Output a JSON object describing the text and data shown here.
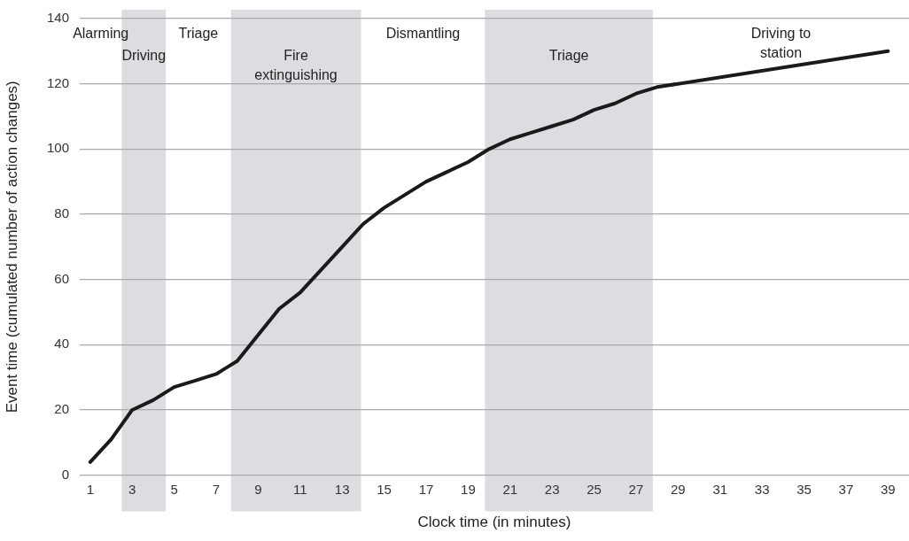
{
  "chart_data": {
    "type": "line",
    "xlabel": "Clock time (in minutes)",
    "ylabel": "Event time (cumulated number of action changes)",
    "series": [
      {
        "color": "#1a1a1a",
        "x": [
          1,
          2,
          3,
          4,
          5,
          6,
          7,
          8,
          9,
          10,
          11,
          12,
          13,
          14,
          15,
          16,
          17,
          18,
          19,
          20,
          21,
          22,
          23,
          24,
          25,
          26,
          27,
          28,
          39
        ],
        "values": [
          4,
          11,
          20,
          23,
          27,
          29,
          31,
          35,
          43,
          51,
          56,
          63,
          70,
          77,
          82,
          86,
          90,
          93,
          96,
          100,
          103,
          105,
          107,
          109,
          112,
          114,
          117,
          119,
          130
        ]
      }
    ],
    "xlim": [
      0.5,
      40
    ],
    "xticks": [
      1,
      3,
      5,
      7,
      9,
      11,
      13,
      15,
      17,
      19,
      21,
      23,
      25,
      27,
      29,
      31,
      33,
      35,
      37,
      39
    ],
    "ylim": [
      0,
      140
    ],
    "yticks": [
      0,
      20,
      40,
      60,
      80,
      100,
      120,
      140
    ],
    "grid": "y",
    "legend": false,
    "marker": "none",
    "line_style": "solid",
    "bands": [
      {
        "axis": "x",
        "from": 2.5,
        "to": 4.6,
        "label": "Driving",
        "color": "#dcdde0"
      },
      {
        "axis": "x",
        "from": 7.7,
        "to": 13.9,
        "label": "Fire\nextinguishing",
        "color": "#dcdde0"
      },
      {
        "axis": "x",
        "from": 19.8,
        "to": 27.8,
        "label": "Triage",
        "color": "#dcdde0"
      }
    ],
    "annotations": [
      "Alarming",
      "Triage",
      "Dismantling",
      "Driving to\nstation"
    ]
  }
}
